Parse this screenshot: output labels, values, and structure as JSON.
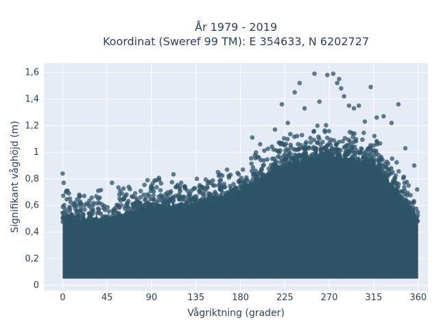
{
  "chart_data": {
    "type": "scatter",
    "title_line1": "År 1979 - 2019",
    "title_line2": "Koordinat (Sweref 99 TM): E 354633, N 6202727",
    "xlabel": "Vågriktning (grader)",
    "ylabel": "Signifikant våghöjd (m)",
    "xlim": [
      -19,
      370
    ],
    "ylim": [
      -0.04,
      1.67
    ],
    "x_ticks": [
      0,
      45,
      90,
      135,
      180,
      225,
      270,
      315,
      360
    ],
    "x_tick_labels": [
      "0",
      "45",
      "90",
      "135",
      "180",
      "225",
      "270",
      "315",
      "360"
    ],
    "y_ticks": [
      0,
      0.2,
      0.4,
      0.6,
      0.8,
      1.0,
      1.2,
      1.4,
      1.6
    ],
    "y_tick_labels": [
      "0",
      "0,2",
      "0,4",
      "0,6",
      "0,8",
      "1",
      "1,2",
      "1,4",
      "1,6"
    ],
    "grid": true,
    "marker_color": "#2f5468",
    "plot_bg": "#e5ecf6",
    "series": [
      {
        "values": "dense cloud of wave observations; bulk height by direction",
        "bulk_envelope": [
          {
            "x": 0,
            "y_max": 0.52
          },
          {
            "x": 45,
            "y_max": 0.5
          },
          {
            "x": 90,
            "y_max": 0.6
          },
          {
            "x": 135,
            "y_max": 0.62
          },
          {
            "x": 180,
            "y_max": 0.72
          },
          {
            "x": 225,
            "y_max": 0.92
          },
          {
            "x": 270,
            "y_max": 1.0
          },
          {
            "x": 315,
            "y_max": 0.92
          },
          {
            "x": 360,
            "y_max": 0.52
          }
        ],
        "outliers": [
          {
            "x": 0,
            "y": 0.84
          },
          {
            "x": 1,
            "y": 0.77
          },
          {
            "x": 4,
            "y": 0.71
          },
          {
            "x": 36,
            "y": 0.71
          },
          {
            "x": 50,
            "y": 0.77
          },
          {
            "x": 60,
            "y": 0.69
          },
          {
            "x": 95,
            "y": 0.79
          },
          {
            "x": 120,
            "y": 0.77
          },
          {
            "x": 170,
            "y": 0.83
          },
          {
            "x": 192,
            "y": 1.11
          },
          {
            "x": 200,
            "y": 1.06
          },
          {
            "x": 215,
            "y": 1.17
          },
          {
            "x": 222,
            "y": 1.36
          },
          {
            "x": 228,
            "y": 1.22
          },
          {
            "x": 235,
            "y": 1.45
          },
          {
            "x": 240,
            "y": 1.52
          },
          {
            "x": 245,
            "y": 1.33
          },
          {
            "x": 255,
            "y": 1.59
          },
          {
            "x": 260,
            "y": 1.38
          },
          {
            "x": 268,
            "y": 1.58
          },
          {
            "x": 274,
            "y": 1.59
          },
          {
            "x": 278,
            "y": 1.52
          },
          {
            "x": 280,
            "y": 1.55
          },
          {
            "x": 282,
            "y": 1.48
          },
          {
            "x": 285,
            "y": 1.42
          },
          {
            "x": 290,
            "y": 1.35
          },
          {
            "x": 295,
            "y": 1.33
          },
          {
            "x": 300,
            "y": 1.35
          },
          {
            "x": 306,
            "y": 1.23
          },
          {
            "x": 312,
            "y": 1.49
          },
          {
            "x": 318,
            "y": 1.26
          },
          {
            "x": 325,
            "y": 1.27
          },
          {
            "x": 333,
            "y": 1.22
          },
          {
            "x": 340,
            "y": 1.36
          },
          {
            "x": 347,
            "y": 1.03
          },
          {
            "x": 356,
            "y": 0.9
          },
          {
            "x": 359,
            "y": 0.72
          }
        ]
      }
    ]
  }
}
